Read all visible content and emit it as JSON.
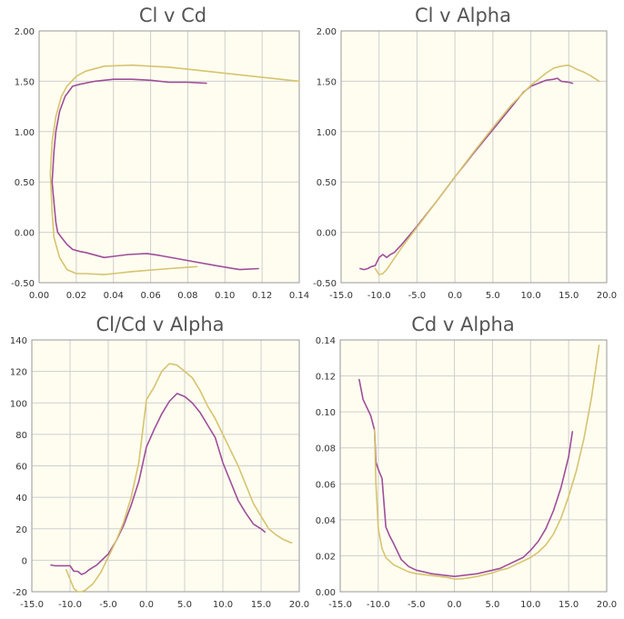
{
  "colors": {
    "series_a": "#9d4f9a",
    "series_b": "#d6c46e",
    "background": "#fffdf0"
  },
  "chart_data": [
    {
      "type": "line",
      "title": "Cl v Cd",
      "xlim": [
        0,
        0.14
      ],
      "ylim": [
        -0.5,
        2.0
      ],
      "xticks": [
        "0.00",
        "0.02",
        "0.04",
        "0.06",
        "0.08",
        "0.10",
        "0.12",
        "0.14"
      ],
      "yticks": [
        "-0.50",
        "0.00",
        "0.50",
        "1.00",
        "1.50",
        "2.00"
      ],
      "xtick_values": [
        0,
        0.02,
        0.04,
        0.06,
        0.08,
        0.1,
        0.12,
        0.14
      ],
      "ytick_values": [
        -0.5,
        0,
        0.5,
        1.0,
        1.5,
        2.0
      ],
      "grid": true,
      "series": [
        {
          "color": "#9d4f9a",
          "points": [
            [
              0.118,
              -0.36
            ],
            [
              0.108,
              -0.37
            ],
            [
              0.095,
              -0.33
            ],
            [
              0.08,
              -0.28
            ],
            [
              0.065,
              -0.23
            ],
            [
              0.058,
              -0.21
            ],
            [
              0.048,
              -0.22
            ],
            [
              0.035,
              -0.25
            ],
            [
              0.025,
              -0.2
            ],
            [
              0.022,
              -0.19
            ],
            [
              0.018,
              -0.17
            ],
            [
              0.015,
              -0.12
            ],
            [
              0.012,
              -0.05
            ],
            [
              0.01,
              0.0
            ],
            [
              0.009,
              0.1
            ],
            [
              0.008,
              0.3
            ],
            [
              0.007,
              0.5
            ],
            [
              0.008,
              0.8
            ],
            [
              0.009,
              1.0
            ],
            [
              0.011,
              1.2
            ],
            [
              0.014,
              1.35
            ],
            [
              0.018,
              1.45
            ],
            [
              0.022,
              1.47
            ],
            [
              0.03,
              1.5
            ],
            [
              0.04,
              1.52
            ],
            [
              0.05,
              1.52
            ],
            [
              0.06,
              1.51
            ],
            [
              0.07,
              1.49
            ],
            [
              0.08,
              1.49
            ],
            [
              0.09,
              1.48
            ]
          ]
        },
        {
          "color": "#d6c46e",
          "points": [
            [
              0.085,
              -0.34
            ],
            [
              0.07,
              -0.36
            ],
            [
              0.05,
              -0.39
            ],
            [
              0.035,
              -0.42
            ],
            [
              0.025,
              -0.41
            ],
            [
              0.02,
              -0.41
            ],
            [
              0.015,
              -0.37
            ],
            [
              0.011,
              -0.25
            ],
            [
              0.008,
              -0.05
            ],
            [
              0.007,
              0.2
            ],
            [
              0.0065,
              0.4
            ],
            [
              0.006,
              0.58
            ],
            [
              0.007,
              0.9
            ],
            [
              0.009,
              1.15
            ],
            [
              0.012,
              1.35
            ],
            [
              0.015,
              1.45
            ],
            [
              0.02,
              1.55
            ],
            [
              0.025,
              1.6
            ],
            [
              0.035,
              1.65
            ],
            [
              0.05,
              1.66
            ],
            [
              0.07,
              1.64
            ],
            [
              0.09,
              1.6
            ],
            [
              0.11,
              1.56
            ],
            [
              0.14,
              1.5
            ]
          ]
        }
      ]
    },
    {
      "type": "line",
      "title": "Cl v Alpha",
      "xlim": [
        -15,
        20
      ],
      "ylim": [
        -0.5,
        2.0
      ],
      "xticks": [
        "-15.0",
        "-10.0",
        "-5.0",
        "0.0",
        "5.0",
        "10.0",
        "15.0",
        "20.0"
      ],
      "yticks": [
        "-0.50",
        "0.00",
        "0.50",
        "1.00",
        "1.50",
        "2.00"
      ],
      "xtick_values": [
        -15,
        -10,
        -5,
        0,
        5,
        10,
        15,
        20
      ],
      "ytick_values": [
        -0.5,
        0,
        0.5,
        1.0,
        1.5,
        2.0
      ],
      "grid": true,
      "series": [
        {
          "color": "#9d4f9a",
          "points": [
            [
              -12.5,
              -0.36
            ],
            [
              -12,
              -0.37
            ],
            [
              -11.5,
              -0.36
            ],
            [
              -11,
              -0.34
            ],
            [
              -10.5,
              -0.33
            ],
            [
              -10,
              -0.25
            ],
            [
              -9.5,
              -0.22
            ],
            [
              -9,
              -0.25
            ],
            [
              -8.5,
              -0.22
            ],
            [
              -8,
              -0.2
            ],
            [
              -7,
              -0.12
            ],
            [
              -5,
              0.06
            ],
            [
              -2.5,
              0.3
            ],
            [
              0,
              0.55
            ],
            [
              2.5,
              0.79
            ],
            [
              5,
              1.02
            ],
            [
              7.5,
              1.25
            ],
            [
              9,
              1.39
            ],
            [
              10,
              1.45
            ],
            [
              11,
              1.48
            ],
            [
              12,
              1.51
            ],
            [
              13,
              1.52
            ],
            [
              13.5,
              1.53
            ],
            [
              14,
              1.5
            ],
            [
              15,
              1.49
            ],
            [
              15.5,
              1.48
            ]
          ]
        },
        {
          "color": "#d6c46e",
          "points": [
            [
              -10.5,
              -0.36
            ],
            [
              -10,
              -0.42
            ],
            [
              -9.5,
              -0.41
            ],
            [
              -9,
              -0.37
            ],
            [
              -8,
              -0.26
            ],
            [
              -7,
              -0.15
            ],
            [
              -5,
              0.05
            ],
            [
              -2.5,
              0.3
            ],
            [
              0,
              0.55
            ],
            [
              2.5,
              0.8
            ],
            [
              5,
              1.04
            ],
            [
              7.5,
              1.27
            ],
            [
              10,
              1.46
            ],
            [
              11,
              1.52
            ],
            [
              12,
              1.58
            ],
            [
              13,
              1.63
            ],
            [
              14,
              1.65
            ],
            [
              15,
              1.66
            ],
            [
              16,
              1.62
            ],
            [
              17,
              1.59
            ],
            [
              18,
              1.55
            ],
            [
              19,
              1.5
            ]
          ]
        }
      ]
    },
    {
      "type": "line",
      "title": "Cl/Cd v Alpha",
      "xlim": [
        -15,
        20
      ],
      "ylim": [
        -20,
        140
      ],
      "xticks": [
        "-15.0",
        "-10.0",
        "-5.0",
        "0.0",
        "5.0",
        "10.0",
        "15.0",
        "20.0"
      ],
      "yticks": [
        "-20",
        "0",
        "20",
        "40",
        "60",
        "80",
        "100",
        "120",
        "140"
      ],
      "xtick_values": [
        -15,
        -10,
        -5,
        0,
        5,
        10,
        15,
        20
      ],
      "ytick_values": [
        -20,
        0,
        20,
        40,
        60,
        80,
        100,
        120,
        140
      ],
      "grid": true,
      "series": [
        {
          "color": "#9d4f9a",
          "points": [
            [
              -12.5,
              -3
            ],
            [
              -12,
              -3.5
            ],
            [
              -11,
              -3.5
            ],
            [
              -10,
              -3.5
            ],
            [
              -9.5,
              -7
            ],
            [
              -9,
              -7
            ],
            [
              -8.5,
              -9
            ],
            [
              -8,
              -8
            ],
            [
              -7.5,
              -6
            ],
            [
              -6.5,
              -3
            ],
            [
              -5,
              4
            ],
            [
              -4,
              12
            ],
            [
              -3,
              22
            ],
            [
              -2,
              35
            ],
            [
              -1,
              50
            ],
            [
              0,
              72
            ],
            [
              1,
              83
            ],
            [
              2,
              93
            ],
            [
              3,
              101
            ],
            [
              4,
              106
            ],
            [
              5,
              104
            ],
            [
              6,
              100
            ],
            [
              7,
              94
            ],
            [
              8,
              86
            ],
            [
              9,
              78
            ],
            [
              10,
              62
            ],
            [
              11,
              50
            ],
            [
              12,
              38
            ],
            [
              13,
              30
            ],
            [
              14,
              23
            ],
            [
              15,
              20
            ],
            [
              15.5,
              18
            ]
          ]
        },
        {
          "color": "#d6c46e",
          "points": [
            [
              -10.5,
              -6
            ],
            [
              -10,
              -12
            ],
            [
              -9.5,
              -18
            ],
            [
              -9,
              -20
            ],
            [
              -8.5,
              -20
            ],
            [
              -8,
              -19
            ],
            [
              -7,
              -15
            ],
            [
              -6,
              -8
            ],
            [
              -5,
              2
            ],
            [
              -4,
              12
            ],
            [
              -3,
              24
            ],
            [
              -2,
              40
            ],
            [
              -1,
              62
            ],
            [
              0,
              102
            ],
            [
              1,
              110
            ],
            [
              2,
              120
            ],
            [
              3,
              125
            ],
            [
              4,
              124
            ],
            [
              5,
              120
            ],
            [
              6,
              116
            ],
            [
              7,
              108
            ],
            [
              8,
              98
            ],
            [
              9,
              90
            ],
            [
              10,
              80
            ],
            [
              11,
              70
            ],
            [
              12,
              60
            ],
            [
              13,
              48
            ],
            [
              14,
              36
            ],
            [
              15,
              28
            ],
            [
              16,
              20
            ],
            [
              17,
              16
            ],
            [
              18,
              13
            ],
            [
              19,
              11
            ]
          ]
        }
      ]
    },
    {
      "type": "line",
      "title": "Cd v Alpha",
      "xlim": [
        -15,
        20
      ],
      "ylim": [
        0,
        0.14
      ],
      "xticks": [
        "-15.0",
        "-10.0",
        "-5.0",
        "0.0",
        "5.0",
        "10.0",
        "15.0",
        "20.0"
      ],
      "yticks": [
        "0.00",
        "0.02",
        "0.04",
        "0.06",
        "0.08",
        "0.10",
        "0.12",
        "0.14"
      ],
      "xtick_values": [
        -15,
        -10,
        -5,
        0,
        5,
        10,
        15,
        20
      ],
      "ytick_values": [
        0,
        0.02,
        0.04,
        0.06,
        0.08,
        0.1,
        0.12,
        0.14
      ],
      "grid": true,
      "series": [
        {
          "color": "#9d4f9a",
          "points": [
            [
              -12.5,
              0.118
            ],
            [
              -12,
              0.107
            ],
            [
              -11,
              0.098
            ],
            [
              -10.5,
              0.09
            ],
            [
              -10.3,
              0.072
            ],
            [
              -10,
              0.068
            ],
            [
              -9.5,
              0.063
            ],
            [
              -9,
              0.036
            ],
            [
              -8.5,
              0.031
            ],
            [
              -8,
              0.027
            ],
            [
              -7,
              0.018
            ],
            [
              -6,
              0.014
            ],
            [
              -5,
              0.012
            ],
            [
              -4,
              0.011
            ],
            [
              -3,
              0.01
            ],
            [
              -2,
              0.0095
            ],
            [
              -1,
              0.009
            ],
            [
              0,
              0.0085
            ],
            [
              1,
              0.009
            ],
            [
              2,
              0.0095
            ],
            [
              3,
              0.01
            ],
            [
              4,
              0.011
            ],
            [
              5,
              0.012
            ],
            [
              6,
              0.013
            ],
            [
              7,
              0.015
            ],
            [
              8,
              0.017
            ],
            [
              9,
              0.019
            ],
            [
              10,
              0.023
            ],
            [
              11,
              0.028
            ],
            [
              12,
              0.035
            ],
            [
              13,
              0.045
            ],
            [
              14,
              0.058
            ],
            [
              15,
              0.075
            ],
            [
              15.5,
              0.089
            ]
          ]
        },
        {
          "color": "#d6c46e",
          "points": [
            [
              -10.5,
              0.09
            ],
            [
              -10.3,
              0.06
            ],
            [
              -10,
              0.035
            ],
            [
              -9.5,
              0.024
            ],
            [
              -9,
              0.019
            ],
            [
              -8,
              0.015
            ],
            [
              -7,
              0.013
            ],
            [
              -6,
              0.011
            ],
            [
              -5,
              0.01
            ],
            [
              -4,
              0.0095
            ],
            [
              -3,
              0.009
            ],
            [
              -2,
              0.0085
            ],
            [
              -1,
              0.008
            ],
            [
              0,
              0.007
            ],
            [
              1,
              0.0072
            ],
            [
              2,
              0.0078
            ],
            [
              3,
              0.0085
            ],
            [
              4,
              0.0095
            ],
            [
              5,
              0.0105
            ],
            [
              6,
              0.012
            ],
            [
              7,
              0.013
            ],
            [
              8,
              0.015
            ],
            [
              9,
              0.017
            ],
            [
              10,
              0.019
            ],
            [
              11,
              0.022
            ],
            [
              12,
              0.026
            ],
            [
              13,
              0.032
            ],
            [
              14,
              0.041
            ],
            [
              15,
              0.053
            ],
            [
              16,
              0.067
            ],
            [
              17,
              0.085
            ],
            [
              18,
              0.108
            ],
            [
              19,
              0.137
            ]
          ]
        }
      ]
    }
  ]
}
